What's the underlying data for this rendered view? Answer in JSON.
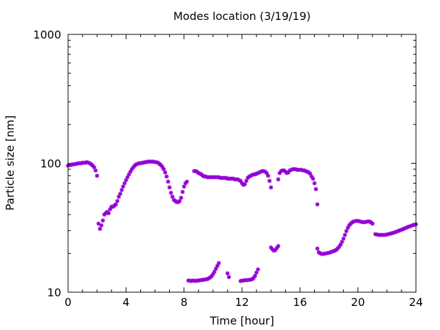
{
  "chart_data": {
    "type": "scatter",
    "title": "Modes location (3/19/19)",
    "xlabel": "Time [hour]",
    "ylabel": "Particle size [nm]",
    "xlim": [
      0,
      24
    ],
    "ylim": [
      10,
      1000
    ],
    "yscale": "log",
    "grid": false,
    "legend": "none",
    "marker_color": "#9400D3",
    "x_ticks": [
      0,
      4,
      8,
      12,
      16,
      20,
      24
    ],
    "x_tick_labels": [
      "0",
      "4",
      "8",
      "12",
      "16",
      "20",
      "24"
    ],
    "y_ticks": [
      10,
      100,
      1000
    ],
    "y_tick_labels": [
      "10",
      "100",
      "1000"
    ],
    "series": [
      {
        "points": [
          [
            0.0,
            96
          ],
          [
            0.1,
            97
          ],
          [
            0.2,
            97
          ],
          [
            0.3,
            98
          ],
          [
            0.4,
            98
          ],
          [
            0.5,
            99
          ],
          [
            0.6,
            99
          ],
          [
            0.7,
            100
          ],
          [
            0.8,
            100
          ],
          [
            0.9,
            100
          ],
          [
            1.0,
            101
          ],
          [
            1.1,
            101
          ],
          [
            1.2,
            101
          ],
          [
            1.3,
            102
          ],
          [
            1.4,
            101
          ],
          [
            1.5,
            100
          ],
          [
            1.6,
            98
          ],
          [
            1.7,
            96
          ],
          [
            1.8,
            93
          ],
          [
            1.9,
            88
          ],
          [
            2.0,
            80
          ],
          [
            2.1,
            34
          ],
          [
            2.2,
            31
          ],
          [
            2.3,
            33
          ],
          [
            2.4,
            36
          ],
          [
            2.5,
            40
          ],
          [
            2.6,
            41
          ],
          [
            2.7,
            42
          ],
          [
            2.8,
            41
          ],
          [
            2.9,
            44
          ],
          [
            3.0,
            46
          ],
          [
            3.1,
            46
          ],
          [
            3.2,
            47
          ],
          [
            3.3,
            48
          ],
          [
            3.4,
            51
          ],
          [
            3.5,
            55
          ],
          [
            3.6,
            58
          ],
          [
            3.7,
            62
          ],
          [
            3.8,
            66
          ],
          [
            3.9,
            70
          ],
          [
            4.0,
            74
          ],
          [
            4.1,
            78
          ],
          [
            4.2,
            82
          ],
          [
            4.3,
            86
          ],
          [
            4.4,
            90
          ],
          [
            4.5,
            93
          ],
          [
            4.6,
            96
          ],
          [
            4.7,
            98
          ],
          [
            4.8,
            99
          ],
          [
            4.9,
            100
          ],
          [
            5.0,
            100
          ],
          [
            5.1,
            101
          ],
          [
            5.2,
            101
          ],
          [
            5.3,
            102
          ],
          [
            5.4,
            102
          ],
          [
            5.5,
            103
          ],
          [
            5.6,
            103
          ],
          [
            5.7,
            103
          ],
          [
            5.8,
            103
          ],
          [
            5.9,
            103
          ],
          [
            6.0,
            102
          ],
          [
            6.1,
            102
          ],
          [
            6.2,
            101
          ],
          [
            6.3,
            99
          ],
          [
            6.4,
            97
          ],
          [
            6.5,
            94
          ],
          [
            6.6,
            90
          ],
          [
            6.7,
            85
          ],
          [
            6.8,
            79
          ],
          [
            6.9,
            72
          ],
          [
            7.0,
            65
          ],
          [
            7.1,
            59
          ],
          [
            7.2,
            55
          ],
          [
            7.3,
            52
          ],
          [
            7.4,
            51
          ],
          [
            7.5,
            50
          ],
          [
            7.6,
            50
          ],
          [
            7.7,
            51
          ],
          [
            7.8,
            54
          ],
          [
            7.9,
            60
          ],
          [
            8.0,
            66
          ],
          [
            8.1,
            70
          ],
          [
            8.2,
            72
          ],
          [
            8.7,
            87
          ],
          [
            8.8,
            87
          ],
          [
            8.9,
            86
          ],
          [
            9.0,
            84
          ],
          [
            9.1,
            83
          ],
          [
            9.2,
            82
          ],
          [
            9.3,
            80
          ],
          [
            9.4,
            79
          ],
          [
            9.5,
            79
          ],
          [
            9.6,
            78
          ],
          [
            9.7,
            78
          ],
          [
            9.8,
            78
          ],
          [
            9.9,
            78
          ],
          [
            10.0,
            78
          ],
          [
            10.1,
            78
          ],
          [
            10.2,
            78
          ],
          [
            10.3,
            78
          ],
          [
            10.4,
            78
          ],
          [
            10.5,
            77
          ],
          [
            10.6,
            77
          ],
          [
            10.7,
            77
          ],
          [
            10.8,
            77
          ],
          [
            10.9,
            77
          ],
          [
            11.0,
            76
          ],
          [
            11.1,
            76
          ],
          [
            11.2,
            76
          ],
          [
            11.3,
            76
          ],
          [
            11.4,
            76
          ],
          [
            11.5,
            75
          ],
          [
            11.6,
            75
          ],
          [
            11.7,
            75
          ],
          [
            11.8,
            74
          ],
          [
            11.9,
            73
          ],
          [
            12.0,
            70
          ],
          [
            12.1,
            68
          ],
          [
            12.2,
            69
          ],
          [
            12.3,
            73
          ],
          [
            12.4,
            77
          ],
          [
            12.5,
            79
          ],
          [
            12.6,
            80
          ],
          [
            12.7,
            81
          ],
          [
            12.8,
            82
          ],
          [
            12.9,
            82
          ],
          [
            13.0,
            83
          ],
          [
            13.1,
            84
          ],
          [
            13.2,
            85
          ],
          [
            13.3,
            86
          ],
          [
            13.4,
            87
          ],
          [
            13.5,
            87
          ],
          [
            13.6,
            86
          ],
          [
            13.7,
            84
          ],
          [
            13.8,
            80
          ],
          [
            13.9,
            73
          ],
          [
            14.0,
            65
          ],
          [
            14.5,
            75
          ],
          [
            14.6,
            84
          ],
          [
            14.7,
            87
          ],
          [
            14.8,
            88
          ],
          [
            14.9,
            88
          ],
          [
            15.0,
            86
          ],
          [
            15.1,
            84
          ],
          [
            15.2,
            85
          ],
          [
            15.3,
            88
          ],
          [
            15.4,
            89
          ],
          [
            15.5,
            90
          ],
          [
            15.6,
            90
          ],
          [
            15.7,
            90
          ],
          [
            15.8,
            89
          ],
          [
            15.9,
            89
          ],
          [
            16.0,
            89
          ],
          [
            16.1,
            89
          ],
          [
            16.2,
            88
          ],
          [
            16.3,
            88
          ],
          [
            16.4,
            87
          ],
          [
            16.5,
            86
          ],
          [
            16.6,
            85
          ],
          [
            16.7,
            83
          ],
          [
            16.8,
            79
          ],
          [
            16.9,
            76
          ],
          [
            17.0,
            70
          ],
          [
            17.1,
            63
          ],
          [
            17.2,
            48
          ],
          [
            8.3,
            12.3
          ],
          [
            8.4,
            12.3
          ],
          [
            8.5,
            12.2
          ],
          [
            8.6,
            12.3
          ],
          [
            8.7,
            12.3
          ],
          [
            8.8,
            12.2
          ],
          [
            8.9,
            12.3
          ],
          [
            9.0,
            12.3
          ],
          [
            9.1,
            12.4
          ],
          [
            9.2,
            12.4
          ],
          [
            9.3,
            12.5
          ],
          [
            9.4,
            12.5
          ],
          [
            9.5,
            12.6
          ],
          [
            9.6,
            12.6
          ],
          [
            9.7,
            12.8
          ],
          [
            9.8,
            13.0
          ],
          [
            9.9,
            13.3
          ],
          [
            10.0,
            13.8
          ],
          [
            10.1,
            14.4
          ],
          [
            10.2,
            15.2
          ],
          [
            10.3,
            16.0
          ],
          [
            10.4,
            16.8
          ],
          [
            11.0,
            14.0
          ],
          [
            11.1,
            13.1
          ],
          [
            11.9,
            12.2
          ],
          [
            12.0,
            12.3
          ],
          [
            12.1,
            12.3
          ],
          [
            12.2,
            12.4
          ],
          [
            12.3,
            12.4
          ],
          [
            12.4,
            12.4
          ],
          [
            12.5,
            12.5
          ],
          [
            12.6,
            12.5
          ],
          [
            12.7,
            12.6
          ],
          [
            12.8,
            12.9
          ],
          [
            12.9,
            13.4
          ],
          [
            13.0,
            14.2
          ],
          [
            13.1,
            15.0
          ],
          [
            14.0,
            22.2
          ],
          [
            14.1,
            21.5
          ],
          [
            14.2,
            21.0
          ],
          [
            14.3,
            21.2
          ],
          [
            14.4,
            22.0
          ],
          [
            14.5,
            22.8
          ],
          [
            17.2,
            21.8
          ],
          [
            17.3,
            20.4
          ],
          [
            17.4,
            20.0
          ],
          [
            17.5,
            19.8
          ],
          [
            17.6,
            19.8
          ],
          [
            17.7,
            19.9
          ],
          [
            17.8,
            20.0
          ],
          [
            17.9,
            20.1
          ],
          [
            18.0,
            20.2
          ],
          [
            18.1,
            20.4
          ],
          [
            18.2,
            20.6
          ],
          [
            18.3,
            20.8
          ],
          [
            18.4,
            21.0
          ],
          [
            18.5,
            21.3
          ],
          [
            18.6,
            21.8
          ],
          [
            18.7,
            22.5
          ],
          [
            18.8,
            23.4
          ],
          [
            18.9,
            24.6
          ],
          [
            19.0,
            26.0
          ],
          [
            19.1,
            27.8
          ],
          [
            19.2,
            29.8
          ],
          [
            19.3,
            31.5
          ],
          [
            19.4,
            33.0
          ],
          [
            19.5,
            34.0
          ],
          [
            19.6,
            34.8
          ],
          [
            19.7,
            35.3
          ],
          [
            19.8,
            35.6
          ],
          [
            19.9,
            35.7
          ],
          [
            20.0,
            35.7
          ],
          [
            20.1,
            35.5
          ],
          [
            20.2,
            35.2
          ],
          [
            20.3,
            35.0
          ],
          [
            20.4,
            34.9
          ],
          [
            20.5,
            35.0
          ],
          [
            20.6,
            35.2
          ],
          [
            20.7,
            35.4
          ],
          [
            20.8,
            35.3
          ],
          [
            20.9,
            34.8
          ],
          [
            21.0,
            34.0
          ],
          [
            21.2,
            28.2
          ],
          [
            21.3,
            28.0
          ],
          [
            21.4,
            27.9
          ],
          [
            21.5,
            27.8
          ],
          [
            21.6,
            27.8
          ],
          [
            21.7,
            27.8
          ],
          [
            21.8,
            27.8
          ],
          [
            21.9,
            27.9
          ],
          [
            22.0,
            28.0
          ],
          [
            22.1,
            28.2
          ],
          [
            22.2,
            28.4
          ],
          [
            22.3,
            28.6
          ],
          [
            22.4,
            28.8
          ],
          [
            22.5,
            29.0
          ],
          [
            22.6,
            29.3
          ],
          [
            22.7,
            29.6
          ],
          [
            22.8,
            29.9
          ],
          [
            22.9,
            30.2
          ],
          [
            23.0,
            30.5
          ],
          [
            23.1,
            30.8
          ],
          [
            23.2,
            31.2
          ],
          [
            23.3,
            31.5
          ],
          [
            23.4,
            31.9
          ],
          [
            23.5,
            32.2
          ],
          [
            23.6,
            32.5
          ],
          [
            23.7,
            32.8
          ],
          [
            23.8,
            33.1
          ],
          [
            23.9,
            33.4
          ],
          [
            24.0,
            33.6
          ]
        ]
      }
    ]
  }
}
